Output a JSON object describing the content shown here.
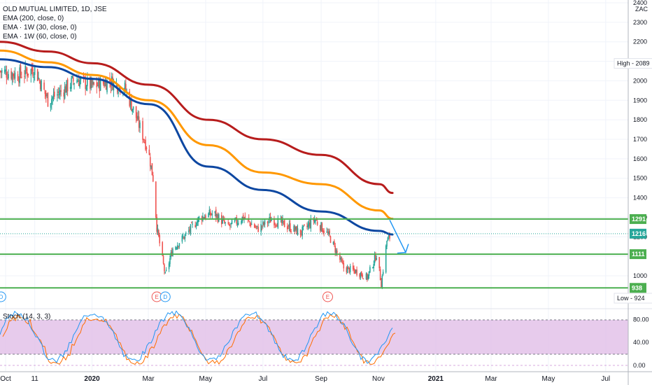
{
  "legend": {
    "symbol_line": "OLD MUTUAL LIMITED, 1D, JSE",
    "ema200": "EMA (200, close, 0)",
    "ema1w30": "EMA · 1W (30, close, 0)",
    "ema1w60": "EMA · 1W (60, close, 0)"
  },
  "currency": "ZAC",
  "price_axis": {
    "min": 900,
    "max": 2400,
    "ticks": [
      1000,
      1100,
      1200,
      1300,
      1400,
      1500,
      1600,
      1700,
      1800,
      1900,
      2000,
      2100,
      2200,
      2300,
      2400
    ],
    "tick_labels": [
      "1000",
      "1100",
      "1200",
      "1300",
      "1400",
      "1500",
      "1600",
      "1700",
      "1800",
      "1900",
      "2000",
      "2100",
      "2200",
      "2300",
      "2400"
    ]
  },
  "time_axis": {
    "labels": [
      "Oct",
      "11",
      "2020",
      "Mar",
      "May",
      "Jul",
      "Sep",
      "Nov",
      "2021",
      "Mar",
      "May",
      "Jul"
    ],
    "label_dates": [
      "2019-10-01",
      "2019-11-01",
      "2020-01-01",
      "2020-03-01",
      "2020-05-01",
      "2020-07-01",
      "2020-09-01",
      "2020-11-01",
      "2021-01-01",
      "2021-03-01",
      "2021-05-01",
      "2021-07-01"
    ],
    "bold": [
      "2020",
      "2021"
    ]
  },
  "badges": {
    "high": "High - 2089",
    "low": "Low - 924",
    "last": "1216",
    "levels": [
      "1291",
      "1111",
      "938"
    ]
  },
  "stoch": {
    "label": "Stoch (14, 3, 3)",
    "ticks": [
      "80.00",
      "40.00",
      "0.00"
    ],
    "band_upper": 80,
    "band_lower": 20
  },
  "markers": [
    {
      "text": "D",
      "date": "2019-09-26",
      "kind": "dividend"
    },
    {
      "text": "E",
      "date": "2020-03-10",
      "kind": "earnings"
    },
    {
      "text": "D",
      "date": "2020-03-19",
      "kind": "dividend"
    },
    {
      "text": "E",
      "date": "2020-09-08",
      "kind": "earnings"
    }
  ],
  "colors": {
    "up": "#26a69a",
    "down": "#ef5350",
    "ema200": "#b71c1c",
    "ema1w30": "#0d47a1",
    "ema1w60": "#ff9800",
    "level": "#4caf50",
    "arrow": "#2196f3",
    "stoch_k": "#2196f3",
    "stoch_d": "#ff6d00",
    "stoch_band": "#e1bee7",
    "last_badge": "#26a69a"
  },
  "chart_data": {
    "type": "candlestick",
    "series": [
      {
        "name": "EMA (200, close, 0)",
        "x": [
          "2019-09-25",
          "2019-11-15",
          "2020-01-02",
          "2020-03-02",
          "2020-05-04",
          "2020-07-01",
          "2020-09-01",
          "2020-11-02",
          "2020-11-16"
        ],
        "values": [
          2200,
          2150,
          2090,
          1980,
          1800,
          1700,
          1620,
          1470,
          1425
        ]
      },
      {
        "name": "EMA · 1W (60, close, 0)",
        "x": [
          "2019-09-25",
          "2019-11-15",
          "2020-01-02",
          "2020-03-02",
          "2020-05-04",
          "2020-07-01",
          "2020-09-01",
          "2020-11-02",
          "2020-11-16"
        ],
        "values": [
          2155,
          2095,
          2030,
          1900,
          1670,
          1530,
          1470,
          1335,
          1292
        ]
      },
      {
        "name": "EMA · 1W (30, close, 0)",
        "x": [
          "2019-09-25",
          "2019-11-15",
          "2020-01-02",
          "2020-03-02",
          "2020-05-04",
          "2020-07-01",
          "2020-09-01",
          "2020-11-02",
          "2020-11-16"
        ],
        "values": [
          2110,
          2070,
          2010,
          1880,
          1560,
          1440,
          1330,
          1230,
          1212
        ]
      }
    ],
    "horizontal_levels": [
      1291,
      1111,
      938
    ],
    "high": 2089,
    "low": 924,
    "last": 1216,
    "arrow": {
      "from": {
        "x": "2020-11-13",
        "y": 1286
      },
      "to": {
        "x": "2020-11-30",
        "y": 1120
      }
    },
    "ohlc_approx": [
      {
        "x": "2019-09-25",
        "y": 2050
      },
      {
        "x": "2019-10-15",
        "y": 2030
      },
      {
        "x": "2019-11-01",
        "y": 2060
      },
      {
        "x": "2019-11-15",
        "y": 1900
      },
      {
        "x": "2019-12-01",
        "y": 1950
      },
      {
        "x": "2019-12-15",
        "y": 2010
      },
      {
        "x": "2020-01-02",
        "y": 1970
      },
      {
        "x": "2020-01-20",
        "y": 2000
      },
      {
        "x": "2020-02-05",
        "y": 1960
      },
      {
        "x": "2020-02-15",
        "y": 1840
      },
      {
        "x": "2020-03-01",
        "y": 1640
      },
      {
        "x": "2020-03-06",
        "y": 1500
      },
      {
        "x": "2020-03-10",
        "y": 1250
      },
      {
        "x": "2020-03-19",
        "y": 1000
      },
      {
        "x": "2020-03-27",
        "y": 1140
      },
      {
        "x": "2020-04-10",
        "y": 1210
      },
      {
        "x": "2020-04-25",
        "y": 1300
      },
      {
        "x": "2020-05-10",
        "y": 1320
      },
      {
        "x": "2020-05-25",
        "y": 1250
      },
      {
        "x": "2020-06-10",
        "y": 1300
      },
      {
        "x": "2020-06-25",
        "y": 1240
      },
      {
        "x": "2020-07-10",
        "y": 1290
      },
      {
        "x": "2020-07-25",
        "y": 1260
      },
      {
        "x": "2020-08-10",
        "y": 1220
      },
      {
        "x": "2020-08-25",
        "y": 1290
      },
      {
        "x": "2020-09-10",
        "y": 1200
      },
      {
        "x": "2020-09-25",
        "y": 1040
      },
      {
        "x": "2020-10-10",
        "y": 1020
      },
      {
        "x": "2020-10-20",
        "y": 990
      },
      {
        "x": "2020-10-30",
        "y": 1110
      },
      {
        "x": "2020-11-04",
        "y": 960
      },
      {
        "x": "2020-11-10",
        "y": 1180
      },
      {
        "x": "2020-11-16",
        "y": 1216
      }
    ],
    "ylim": [
      900,
      2400
    ],
    "xlim": [
      "2019-09-25",
      "2021-07-25"
    ]
  }
}
